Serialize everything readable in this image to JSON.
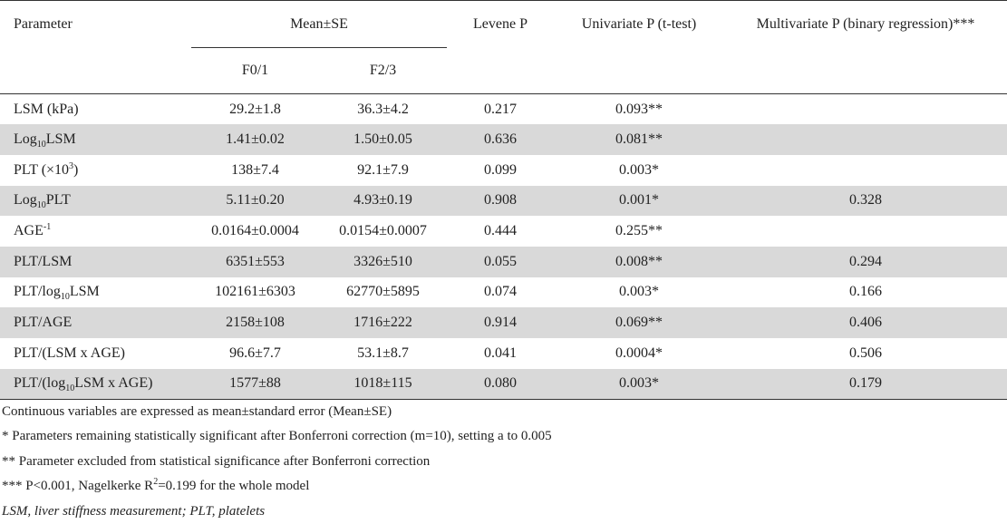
{
  "table": {
    "headers": {
      "parameter": "Parameter",
      "mean_se": "Mean±SE",
      "f01": "F0/1",
      "f23": "F2/3",
      "levene": "Levene P",
      "univariate": "Univariate P (t-test)",
      "multivariate": "Multivariate P (binary regression)***"
    },
    "rows": [
      {
        "param": {
          "main": "LSM (kPa)"
        },
        "f01": "29.2±1.8",
        "f23": "36.3±4.2",
        "levene": "0.217",
        "uni": "0.093**",
        "multi": ""
      },
      {
        "param": {
          "pre": "Log",
          "sub": "10",
          "post": "LSM"
        },
        "f01": "1.41±0.02",
        "f23": "1.50±0.05",
        "levene": "0.636",
        "uni": "0.081**",
        "multi": ""
      },
      {
        "param": {
          "pre": "PLT (×10",
          "sup": "3",
          "post": ")"
        },
        "f01": "138±7.4",
        "f23": "92.1±7.9",
        "levene": "0.099",
        "uni": "0.003*",
        "multi": ""
      },
      {
        "param": {
          "pre": "Log",
          "sub": "10",
          "post": "PLT"
        },
        "f01": "5.11±0.20",
        "f23": "4.93±0.19",
        "levene": "0.908",
        "uni": "0.001*",
        "multi": "0.328"
      },
      {
        "param": {
          "pre": "AGE",
          "sup": "-1",
          "post": ""
        },
        "f01": "0.0164±0.0004",
        "f23": "0.0154±0.0007",
        "levene": "0.444",
        "uni": "0.255**",
        "multi": ""
      },
      {
        "param": {
          "main": "PLT/LSM"
        },
        "f01": "6351±553",
        "f23": "3326±510",
        "levene": "0.055",
        "uni": "0.008**",
        "multi": "0.294"
      },
      {
        "param": {
          "pre": "PLT/log",
          "sub": "10",
          "post": "LSM"
        },
        "f01": "102161±6303",
        "f23": "62770±5895",
        "levene": "0.074",
        "uni": "0.003*",
        "multi": "0.166"
      },
      {
        "param": {
          "main": "PLT/AGE"
        },
        "f01": "2158±108",
        "f23": "1716±222",
        "levene": "0.914",
        "uni": "0.069**",
        "multi": "0.406"
      },
      {
        "param": {
          "main": "PLT/(LSM x AGE)"
        },
        "f01": "96.6±7.7",
        "f23": "53.1±8.7",
        "levene": "0.041",
        "uni": "0.0004*",
        "multi": "0.506"
      },
      {
        "param": {
          "pre": "PLT/(log",
          "sub": "10",
          "post": "LSM x AGE)"
        },
        "f01": "1577±88",
        "f23": "1018±115",
        "levene": "0.080",
        "uni": "0.003*",
        "multi": "0.179"
      }
    ]
  },
  "notes": [
    {
      "text": "Continuous variables are expressed as mean±standard error (Mean±SE)",
      "italic": false
    },
    {
      "text": "* Parameters remaining statistically significant after Bonferroni correction (m=10), setting a to 0.005",
      "italic": false
    },
    {
      "text": "** Parameter excluded from statistical significance after Bonferroni correction",
      "italic": false
    },
    {
      "pre": "*** P<0.001, Nagelkerke R",
      "sup": "2",
      "post": "=0.199 for the whole model",
      "italic": false
    },
    {
      "text": "LSM, liver stiffness measurement; PLT, platelets",
      "italic": true
    }
  ]
}
